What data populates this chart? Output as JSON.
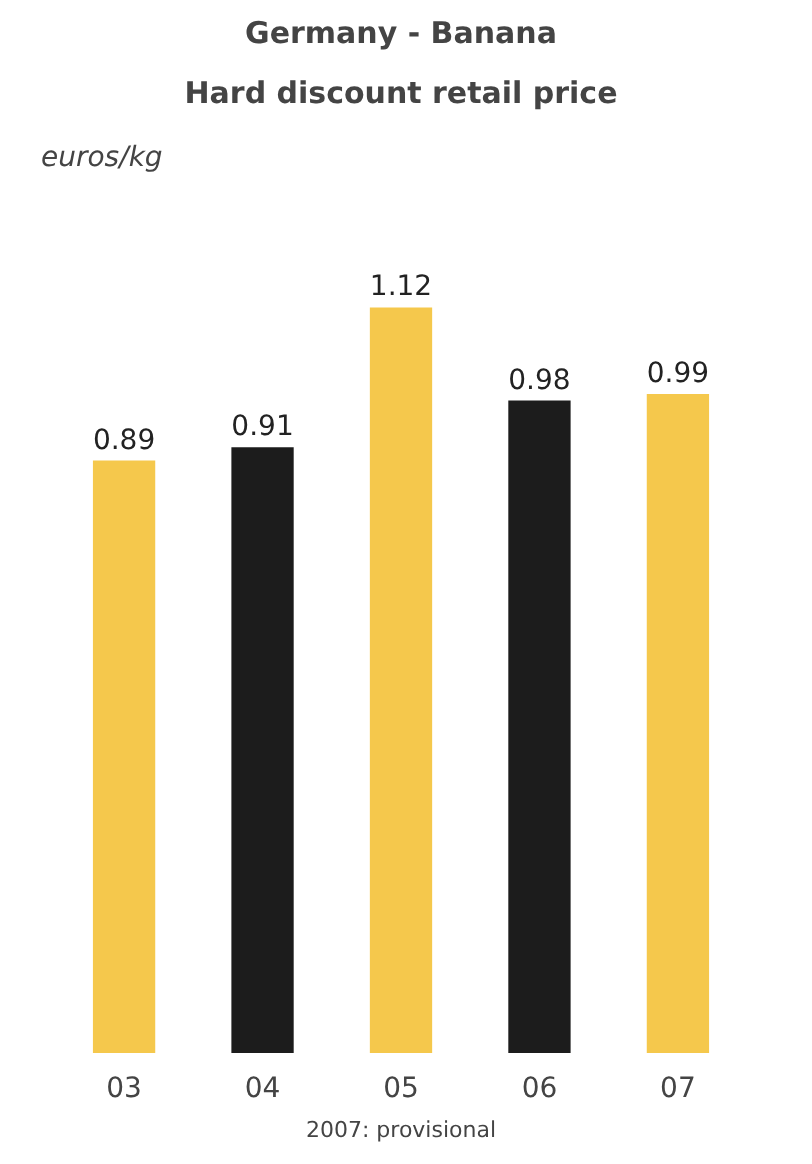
{
  "chart_data": {
    "type": "bar",
    "title": "Germany - Banana",
    "subtitle": "Hard discount retail price",
    "ylabel": "euros/kg",
    "categories": [
      "03",
      "04",
      "05",
      "06",
      "07"
    ],
    "values": [
      0.89,
      0.91,
      1.12,
      0.98,
      0.99
    ],
    "colors": [
      "#f5c84c",
      "#1c1c1c",
      "#f5c84c",
      "#1c1c1c",
      "#f5c84c"
    ],
    "data_labels": true,
    "grid": false,
    "annotations": [
      "2007: provisional"
    ]
  }
}
